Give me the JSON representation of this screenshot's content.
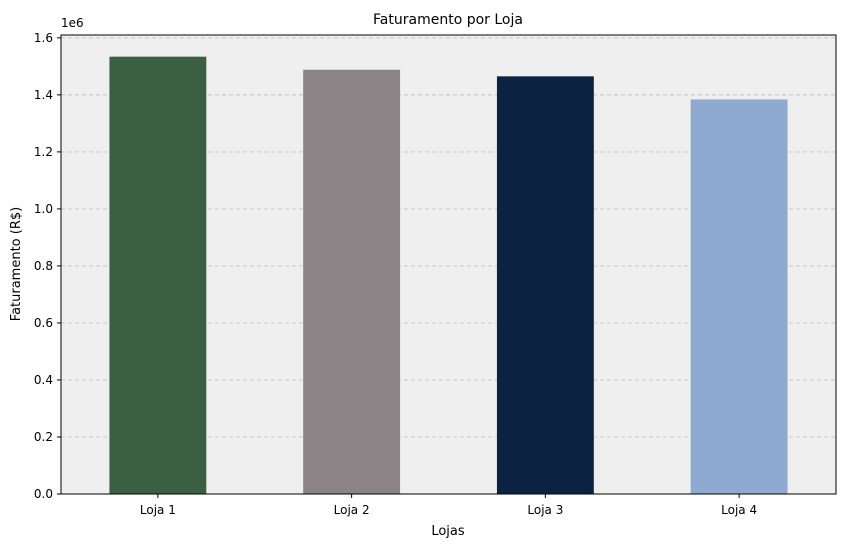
{
  "chart_data": {
    "type": "bar",
    "title": "Faturamento por Loja",
    "xlabel": "Lojas",
    "ylabel": "Faturamento (R$)",
    "y_offset_label": "1e6",
    "categories": [
      "Loja 1",
      "Loja 2",
      "Loja 3",
      "Loja 4"
    ],
    "values": [
      1534000,
      1488000,
      1465000,
      1384000
    ],
    "colors": [
      "#3a5f42",
      "#8a8487",
      "#0b2242",
      "#8eaad0"
    ],
    "ylim": [
      0,
      1610000
    ],
    "yticks": [
      0,
      200000,
      400000,
      600000,
      800000,
      1000000,
      1200000,
      1400000,
      1600000
    ],
    "ytick_labels": [
      "0.0",
      "0.2",
      "0.4",
      "0.6",
      "0.8",
      "1.0",
      "1.2",
      "1.4",
      "1.6"
    ],
    "grid": "y-dashed",
    "plot_background": "#efefef"
  }
}
